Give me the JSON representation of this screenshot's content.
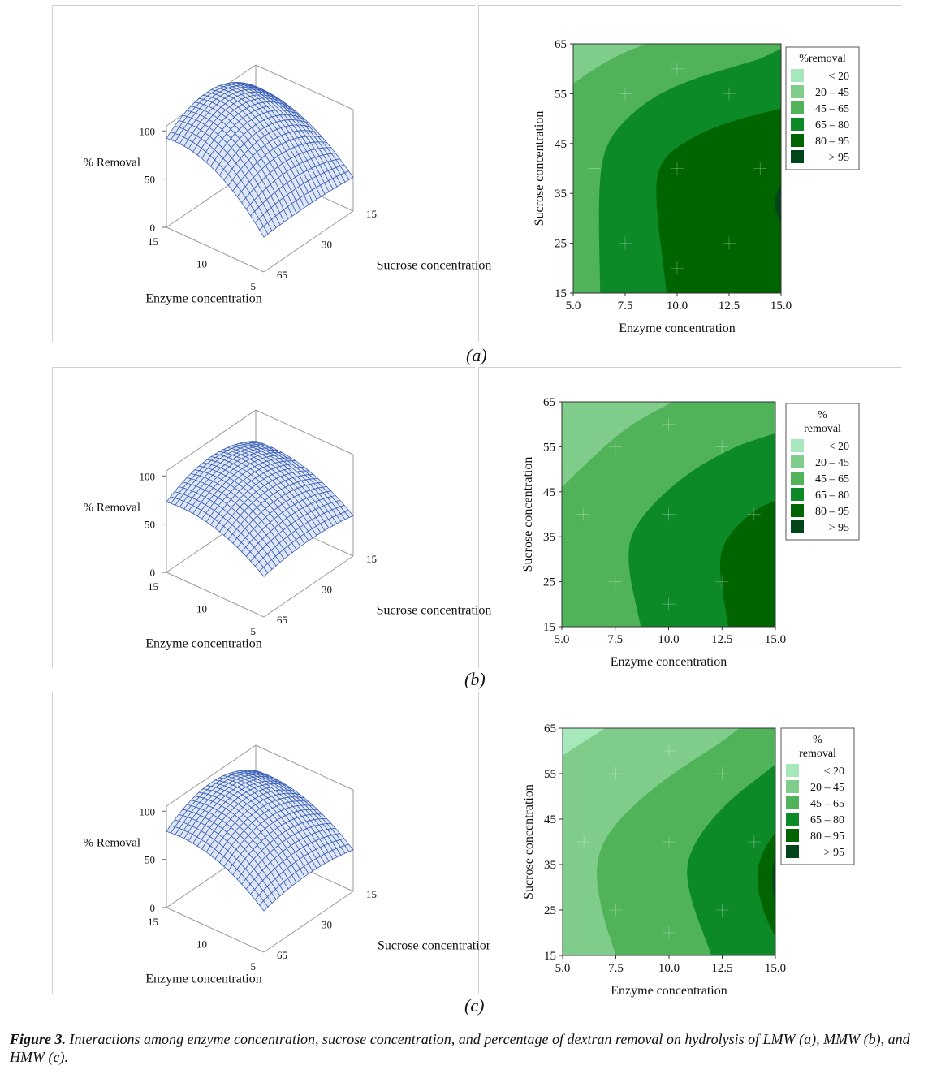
{
  "figure": {
    "caption_bold": "Figure 3.",
    "caption_text": "Interactions among enzyme concentration, sucrose concentration, and percentage of dextran removal on hydrolysis of LMW (a), MMW (b), and HMW (c)."
  },
  "colors": {
    "lt20": "#a6e8bc",
    "b20_45": "#80cc8a",
    "b45_65": "#50b35a",
    "b65_80": "#0d8a28",
    "b80_95": "#006400",
    "gt95": "#00441a",
    "mesh": "#3a5fb5",
    "mesh_fill": "#dfe7f7"
  },
  "panels": [
    {
      "label": "(a)",
      "surface": {
        "zlabel": "% Removal",
        "z_ticks": [
          "100",
          "50",
          "0"
        ],
        "enzyme_label": "Enzyme concentration",
        "enzyme_ticks": [
          "15",
          "10",
          "5"
        ],
        "sucrose_label": "Sucrose concentration",
        "sucrose_ticks": [
          "15",
          "30",
          "65"
        ]
      },
      "contour": {
        "xlabel": "Enzyme concentration",
        "ylabel": "Sucrose concentration",
        "x_ticks": [
          "5.0",
          "7.5",
          "10.0",
          "12.5",
          "15.0"
        ],
        "y_ticks": [
          "15",
          "25",
          "35",
          "45",
          "55",
          "65"
        ],
        "legend_title_lines": [
          "%removal"
        ],
        "legend": [
          "< 20",
          "20 – 45",
          "45 – 65",
          "65 – 80",
          "80 – 95",
          "> 95"
        ]
      }
    },
    {
      "label": "(b)",
      "surface": {
        "zlabel": "% Removal",
        "z_ticks": [
          "100",
          "50",
          "0"
        ],
        "enzyme_label": "Enzyme concentration",
        "enzyme_ticks": [
          "15",
          "10",
          "5"
        ],
        "sucrose_label": "Sucrose concentration",
        "sucrose_ticks": [
          "15",
          "30",
          "65"
        ]
      },
      "contour": {
        "xlabel": "Enzyme concentration",
        "ylabel": "Sucrose concentration",
        "x_ticks": [
          "5.0",
          "7.5",
          "10.0",
          "12.5",
          "15.0"
        ],
        "y_ticks": [
          "15",
          "25",
          "35",
          "45",
          "55",
          "65"
        ],
        "legend_title_lines": [
          "%",
          "removal"
        ],
        "legend": [
          "< 20",
          "20 – 45",
          "45 – 65",
          "65 – 80",
          "80 – 95",
          "> 95"
        ]
      }
    },
    {
      "label": "(c)",
      "surface": {
        "zlabel": "% Removal",
        "z_ticks": [
          "100",
          "50",
          "0"
        ],
        "enzyme_label": "Enzyme concentration",
        "enzyme_ticks": [
          "15",
          "10",
          "5"
        ],
        "sucrose_label": "Sucrose concentratior",
        "sucrose_ticks": [
          "15",
          "30",
          "65"
        ]
      },
      "contour": {
        "xlabel": "Enzyme concentration",
        "ylabel": "Sucrose concentration",
        "x_ticks": [
          "5.0",
          "7.5",
          "10.0",
          "12.5",
          "15.0"
        ],
        "y_ticks": [
          "15",
          "25",
          "35",
          "45",
          "55",
          "65"
        ],
        "legend_title_lines": [
          "%",
          "removal"
        ],
        "legend": [
          "< 20",
          "20 – 45",
          "45 – 65",
          "65 – 80",
          "80 – 95",
          "> 95"
        ]
      }
    }
  ],
  "chart_data": [
    {
      "type": "contour",
      "panel": "(a)",
      "xlabel": "Enzyme concentration",
      "ylabel": "Sucrose concentration",
      "xlim": [
        5.0,
        15.0
      ],
      "ylim": [
        15,
        65
      ],
      "levels": [
        "< 20",
        "20 – 45",
        "45 – 65",
        "65 – 80",
        "80 – 95",
        "> 95"
      ],
      "boundaries": [
        {
          "band": "20 – 45 / 45 – 65",
          "x": [
            5.0,
            6.0,
            7.3,
            8.5
          ],
          "y": [
            57,
            60,
            63,
            65
          ]
        },
        {
          "band": "45 – 65 / 65 – 80",
          "x": [
            6.3,
            6.2,
            6.5,
            8.0,
            10.0,
            14.0
          ],
          "y": [
            15,
            35,
            45,
            52,
            57,
            62
          ]
        },
        {
          "band": "65 – 80 / 80 – 95",
          "x": [
            9.5,
            8.9,
            9.2,
            11.0,
            13.0,
            15.0
          ],
          "y": [
            15,
            35,
            42,
            47,
            50,
            52
          ]
        },
        {
          "band": "80 – 95 / > 95",
          "x": [
            15.0,
            14.6,
            15.0
          ],
          "y": [
            29,
            33,
            37
          ]
        }
      ]
    },
    {
      "type": "contour",
      "panel": "(b)",
      "xlabel": "Enzyme concentration",
      "ylabel": "Sucrose concentration",
      "xlim": [
        5.0,
        15.0
      ],
      "ylim": [
        15,
        65
      ],
      "levels": [
        "< 20",
        "20 – 45",
        "45 – 65",
        "65 – 80",
        "80 – 95",
        "> 95"
      ],
      "boundaries": [
        {
          "band": "20 – 45 / 45 – 65",
          "x": [
            5.0,
            6.5,
            8.2,
            10.2
          ],
          "y": [
            46,
            53,
            60,
            65
          ]
        },
        {
          "band": "45 – 65 / 65 – 80",
          "x": [
            8.7,
            8.0,
            8.4,
            10.5,
            13.0,
            15.0
          ],
          "y": [
            15,
            30,
            38,
            48,
            55,
            58
          ]
        },
        {
          "band": "65 – 80 / 80 – 95",
          "x": [
            12.8,
            12.3,
            12.7,
            14.0,
            15.0
          ],
          "y": [
            15,
            29,
            35,
            41,
            43
          ]
        }
      ]
    },
    {
      "type": "contour",
      "panel": "(c)",
      "xlabel": "Enzyme concentration",
      "ylabel": "Sucrose concentration",
      "xlim": [
        5.0,
        15.0
      ],
      "ylim": [
        15,
        65
      ],
      "levels": [
        "< 20",
        "20 – 45",
        "45 – 65",
        "65 – 80",
        "80 – 95",
        "> 95"
      ],
      "boundaries": [
        {
          "band": "< 20 / 20 – 45",
          "x": [
            5.0,
            6.0,
            7.0
          ],
          "y": [
            59,
            62,
            65
          ]
        },
        {
          "band": "20 – 45 / 45 – 65",
          "x": [
            7.5,
            6.8,
            6.5,
            7.2,
            9.5,
            12.5,
            13.3
          ],
          "y": [
            15,
            25,
            35,
            43,
            53,
            62,
            65
          ]
        },
        {
          "band": "45 – 65 / 65 – 80",
          "x": [
            12.0,
            10.8,
            10.9,
            12.5,
            15.0
          ],
          "y": [
            15,
            30,
            38,
            48,
            57
          ]
        },
        {
          "band": "65 – 80 / 80 – 95",
          "x": [
            15.0,
            14.3,
            14.1,
            14.4,
            15.0
          ],
          "y": [
            19,
            26,
            33,
            38,
            42
          ]
        },
        {
          "band": "80 – 95 / > 95",
          "x": [
            15.0,
            14.8,
            15.0
          ],
          "y": [
            26,
            32,
            38
          ]
        }
      ]
    }
  ]
}
